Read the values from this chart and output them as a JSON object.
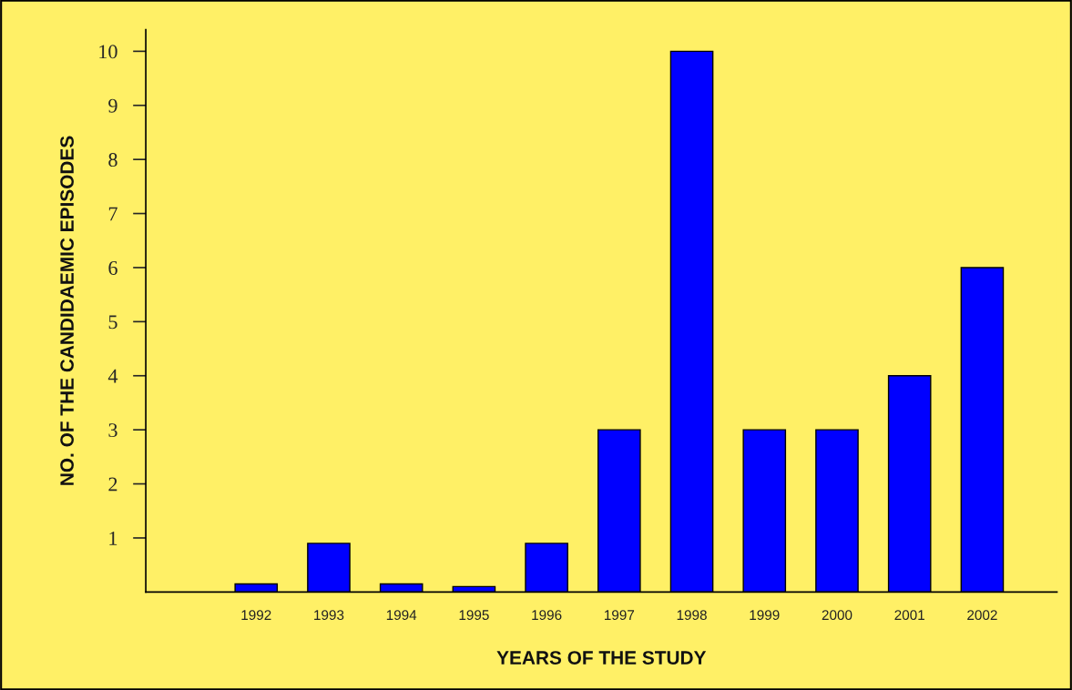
{
  "chart_data": {
    "type": "bar",
    "xlabel": "YEARS OF THE STUDY",
    "ylabel": "NO. OF THE CANDIDAEMIC EPISODES",
    "categories": [
      null,
      "1992",
      "1993",
      "1994",
      "1995",
      "1996",
      "1997",
      "1998",
      "1999",
      "2000",
      "2001",
      "2002"
    ],
    "values": [
      null,
      0.15,
      0.9,
      0.15,
      0.1,
      0.9,
      3,
      10,
      3,
      3,
      4,
      6
    ],
    "color": "#0000ff",
    "ylim": [
      0,
      10.4
    ],
    "yticks": [
      1,
      2,
      3,
      4,
      5,
      6,
      7,
      8,
      9,
      10
    ],
    "grid": false
  }
}
